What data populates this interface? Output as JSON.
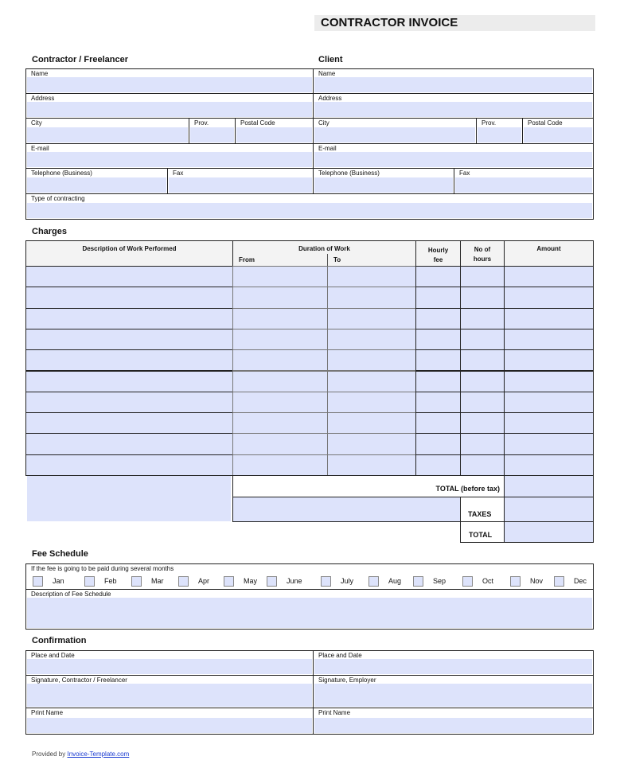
{
  "title": "CONTRACTOR INVOICE",
  "contractor": {
    "heading": "Contractor / Freelancer",
    "name": "Name",
    "address": "Address",
    "city": "City",
    "prov": "Prov.",
    "postal": "Postal Code",
    "email": "E-mail",
    "telephone": "Telephone (Business)",
    "fax": "Fax",
    "type": "Type of contracting"
  },
  "client": {
    "heading": "Client",
    "name": "Name",
    "address": "Address",
    "city": "City",
    "prov": "Prov.",
    "postal": "Postal Code",
    "email": "E-mail",
    "telephone": "Telephone (Business)",
    "fax": "Fax"
  },
  "charges": {
    "heading": "Charges",
    "col_description": "Description of Work Performed",
    "col_duration": "Duration of Work",
    "col_from": "From",
    "col_to": "To",
    "col_hourly": "Hourly fee",
    "col_hours": "No of hours",
    "col_amount": "Amount",
    "row_count": 10,
    "total_before_tax": "TOTAL (before tax)",
    "taxes": "TAXES",
    "total": "TOTAL"
  },
  "fee_schedule": {
    "heading": "Fee Schedule",
    "note": "If the fee is going to be paid during several months",
    "months": [
      "Jan",
      "Feb",
      "Mar",
      "Apr",
      "May",
      "June",
      "July",
      "Aug",
      "Sep",
      "Oct",
      "Nov",
      "Dec"
    ],
    "description": "Description of Fee Schedule"
  },
  "confirmation": {
    "heading": "Confirmation",
    "place_date_left": "Place and Date",
    "place_date_right": "Place and Date",
    "sig_contractor": "Signature, Contractor / Freelancer",
    "sig_employer": "Signature, Employer",
    "print_left": "Print Name",
    "print_right": "Print Name"
  },
  "footer": {
    "prefix": "Provided by",
    "link": "Invoice-Template.com"
  }
}
